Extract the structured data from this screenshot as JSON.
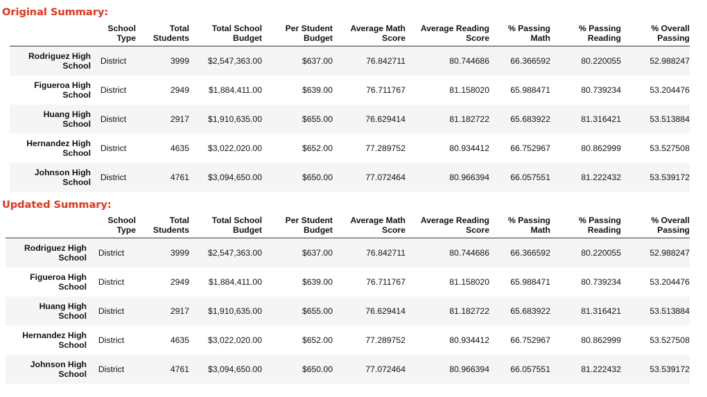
{
  "sections": [
    {
      "title": "Original Summary:",
      "columns": [
        "",
        "School\nType",
        "Total\nStudents",
        "Total School\nBudget",
        "Per Student\nBudget",
        "Average Math\nScore",
        "Average Reading\nScore",
        "% Passing\nMath",
        "% Passing\nReading",
        "% Overall\nPassing"
      ],
      "rows": [
        [
          "Rodriguez High\nSchool",
          "District",
          "3999",
          "$2,547,363.00",
          "$637.00",
          "76.842711",
          "80.744686",
          "66.366592",
          "80.220055",
          "52.988247"
        ],
        [
          "Figueroa High\nSchool",
          "District",
          "2949",
          "$1,884,411.00",
          "$639.00",
          "76.711767",
          "81.158020",
          "65.988471",
          "80.739234",
          "53.204476"
        ],
        [
          "Huang High\nSchool",
          "District",
          "2917",
          "$1,910,635.00",
          "$655.00",
          "76.629414",
          "81.182722",
          "65.683922",
          "81.316421",
          "53.513884"
        ],
        [
          "Hernandez High\nSchool",
          "District",
          "4635",
          "$3,022,020.00",
          "$652.00",
          "77.289752",
          "80.934412",
          "66.752967",
          "80.862999",
          "53.527508"
        ],
        [
          "Johnson High\nSchool",
          "District",
          "4761",
          "$3,094,650.00",
          "$650.00",
          "77.072464",
          "80.966394",
          "66.057551",
          "81.222432",
          "53.539172"
        ]
      ]
    },
    {
      "title": "Updated Summary:",
      "columns": [
        "",
        "School\nType",
        "Total\nStudents",
        "Total School\nBudget",
        "Per Student\nBudget",
        "Average Math\nScore",
        "Average Reading\nScore",
        "% Passing\nMath",
        "% Passing\nReading",
        "% Overall\nPassing"
      ],
      "rows": [
        [
          "Rodriguez High\nSchool",
          "District",
          "3999",
          "$2,547,363.00",
          "$637.00",
          "76.842711",
          "80.744686",
          "66.366592",
          "80.220055",
          "52.988247"
        ],
        [
          "Figueroa High\nSchool",
          "District",
          "2949",
          "$1,884,411.00",
          "$639.00",
          "76.711767",
          "81.158020",
          "65.988471",
          "80.739234",
          "53.204476"
        ],
        [
          "Huang High\nSchool",
          "District",
          "2917",
          "$1,910,635.00",
          "$655.00",
          "76.629414",
          "81.182722",
          "65.683922",
          "81.316421",
          "53.513884"
        ],
        [
          "Hernandez High\nSchool",
          "District",
          "4635",
          "$3,022,020.00",
          "$652.00",
          "77.289752",
          "80.934412",
          "66.752967",
          "80.862999",
          "53.527508"
        ],
        [
          "Johnson High\nSchool",
          "District",
          "4761",
          "$3,094,650.00",
          "$650.00",
          "77.072464",
          "80.966394",
          "66.057551",
          "81.222432",
          "53.539172"
        ]
      ]
    }
  ]
}
